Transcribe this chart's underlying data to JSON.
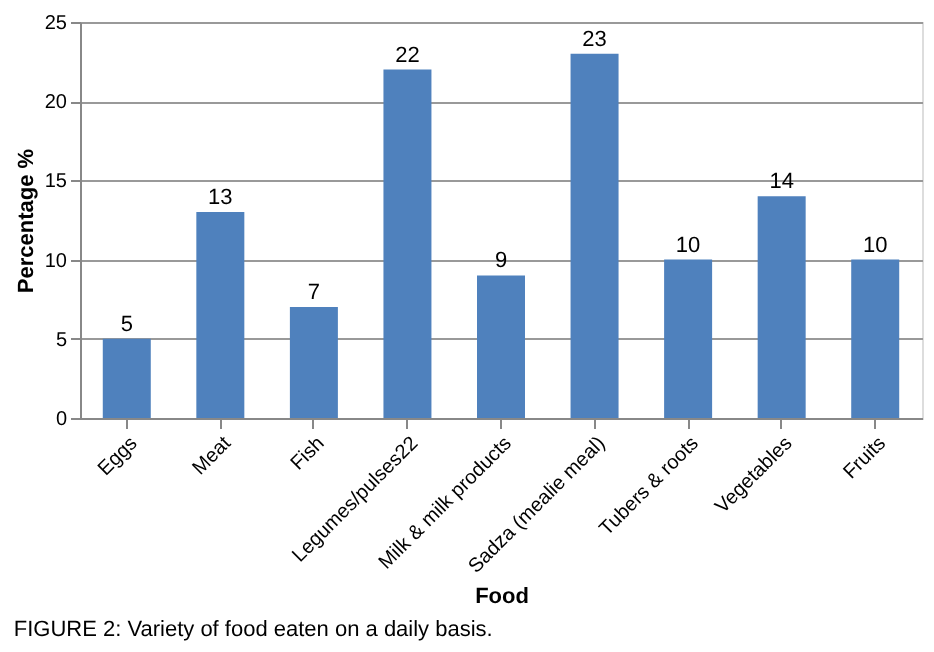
{
  "chart_data": {
    "type": "bar",
    "xlabel": "Food",
    "ylabel": "Percentage %",
    "categories": [
      "Eggs",
      "Meat",
      "Fish",
      "Legumes/pulses22",
      "Milk & milk products",
      "Sadza (mealie meal)",
      "Tubers & roots",
      "Vegetables",
      "Fruits"
    ],
    "values": [
      5,
      13,
      7,
      22,
      9,
      23,
      10,
      14,
      10
    ],
    "color": "#4f81bd",
    "ylim": [
      0,
      25
    ],
    "yticks": [
      0,
      5,
      10,
      15,
      20,
      25
    ],
    "grid": "y",
    "data_labels": true,
    "annotations": [
      "FIGURE 2: Variety of food eaten on a daily basis."
    ]
  }
}
